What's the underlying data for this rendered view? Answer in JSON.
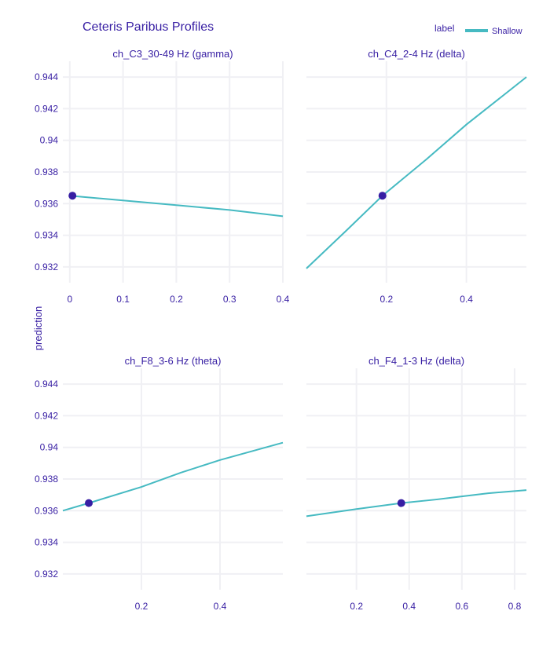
{
  "chart_data": {
    "type": "line",
    "title": "Ceteris Paribus Profiles",
    "ylabel": "prediction",
    "legend": {
      "title": "label",
      "placement": "top-right",
      "entries": [
        {
          "name": "Shallow",
          "color": "#46bac2"
        }
      ]
    },
    "line_color": "#46bac2",
    "point_color": "#371ea3",
    "ylim": [
      0.931,
      0.945
    ],
    "y_ticks": [
      0.932,
      0.934,
      0.936,
      0.938,
      0.94,
      0.942,
      0.944
    ],
    "y_tick_labels": [
      "0.932",
      "0.934",
      "0.936",
      "0.938",
      "0.94",
      "0.942",
      "0.944"
    ],
    "panels": [
      {
        "title": "ch_C3_30-49 Hz (gamma)",
        "xlim": [
          -0.013,
          0.4
        ],
        "x_ticks": [
          0,
          0.1,
          0.2,
          0.3,
          0.4
        ],
        "x_tick_labels": [
          "0",
          "0.1",
          "0.2",
          "0.3",
          "0.4"
        ],
        "x": [
          0,
          0.1,
          0.2,
          0.3,
          0.4
        ],
        "y": [
          0.9365,
          0.9362,
          0.9359,
          0.9356,
          0.9352
        ],
        "point": {
          "x": 0.005,
          "y": 0.9365
        }
      },
      {
        "title": "ch_C4_2-4 Hz (delta)",
        "xlim": [
          0.0,
          0.55
        ],
        "x_ticks": [
          0.2,
          0.4
        ],
        "x_tick_labels": [
          "0.2",
          "0.4"
        ],
        "x": [
          0.0,
          0.1,
          0.19,
          0.3,
          0.4,
          0.55
        ],
        "y": [
          0.9319,
          0.9343,
          0.9365,
          0.9388,
          0.941,
          0.944
        ],
        "point": {
          "x": 0.19,
          "y": 0.9365
        }
      },
      {
        "title": "ch_F8_3-6 Hz (theta)",
        "xlim": [
          0.0,
          0.56
        ],
        "x_ticks": [
          0.2,
          0.4
        ],
        "x_tick_labels": [
          "0.2",
          "0.4"
        ],
        "x": [
          0.0,
          0.066,
          0.2,
          0.3,
          0.4,
          0.56
        ],
        "y": [
          0.936,
          0.93648,
          0.9375,
          0.9384,
          0.9392,
          0.9403
        ],
        "point": {
          "x": 0.066,
          "y": 0.93648
        }
      },
      {
        "title": "ch_F4_1-3 Hz (delta)",
        "xlim": [
          0.01,
          0.845
        ],
        "x_ticks": [
          0.2,
          0.4,
          0.6,
          0.8
        ],
        "x_tick_labels": [
          "0.2",
          "0.4",
          "0.6",
          "0.8"
        ],
        "x": [
          0.01,
          0.2,
          0.37,
          0.5,
          0.6,
          0.7,
          0.845
        ],
        "y": [
          0.93565,
          0.9361,
          0.93648,
          0.9367,
          0.9369,
          0.9371,
          0.9373
        ],
        "point": {
          "x": 0.37,
          "y": 0.93648
        }
      }
    ]
  }
}
